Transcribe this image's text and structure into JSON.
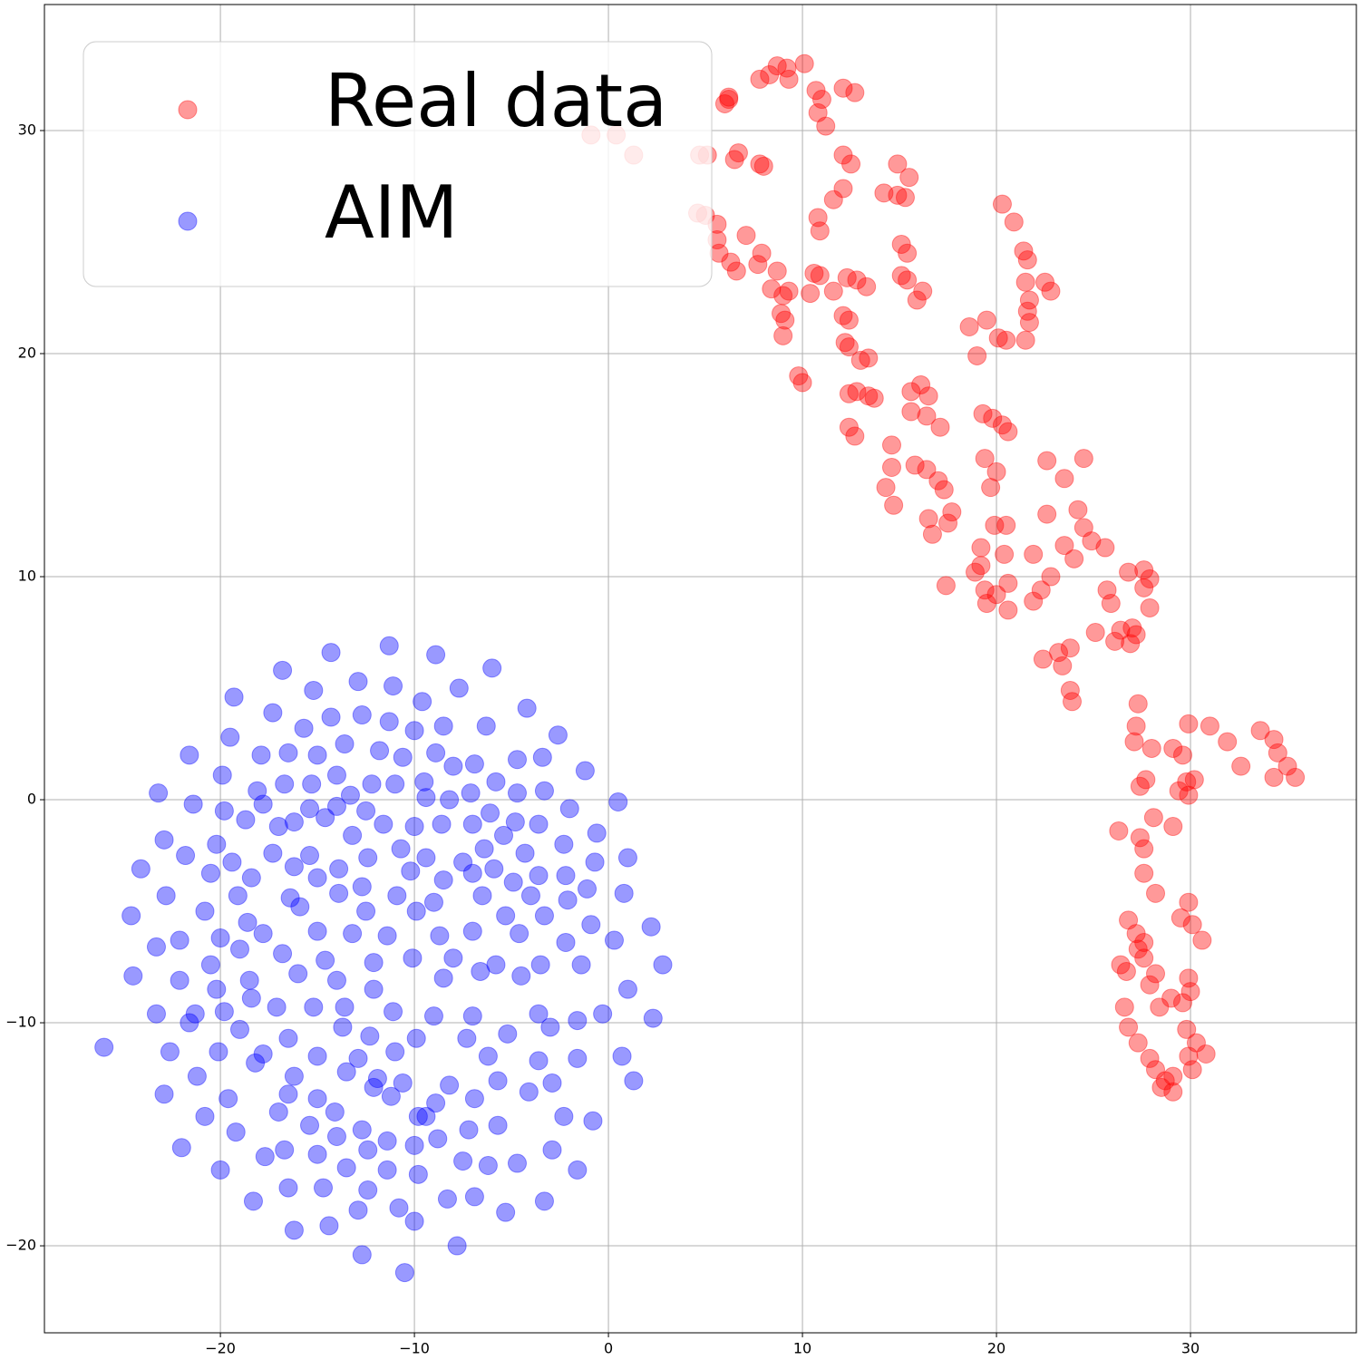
{
  "chart_data": {
    "type": "scatter",
    "xlim": [
      -29.07,
      38.55
    ],
    "ylim": [
      -23.9,
      35.65
    ],
    "xticks": [
      {
        "value": -20,
        "label": "−20"
      },
      {
        "value": -10,
        "label": "−10"
      },
      0,
      10,
      20,
      30
    ],
    "yticks": [
      {
        "value": -20,
        "label": "−20"
      },
      {
        "value": -10,
        "label": "−10"
      },
      0,
      10,
      20,
      30
    ],
    "grid": true,
    "legend": "upper left",
    "alpha": 0.4,
    "series": [
      {
        "name": "Real data",
        "color": "#ff0000",
        "x": [
          8.7,
          10.1,
          9.2,
          8.3,
          7.8,
          9.3,
          10.7,
          11.0,
          10.8,
          11.2,
          12.1,
          12.7,
          6.2,
          6.0,
          6.2,
          -0.9,
          0.4,
          1.3,
          4.7,
          5.1,
          6.5,
          6.7,
          7.8,
          8.0,
          12.1,
          12.5,
          14.9,
          15.5,
          11.6,
          12.1,
          14.2,
          14.9,
          15.3,
          4.6,
          5.0,
          5.6,
          5.6,
          5.7,
          6.3,
          6.6,
          7.1,
          7.9,
          7.7,
          8.7,
          8.4,
          9.3,
          9.0,
          8.9,
          9.0,
          9.1,
          10.8,
          10.9,
          10.6,
          10.9,
          11.6,
          10.4,
          12.3,
          12.8,
          13.3,
          15.1,
          15.4,
          15.1,
          15.4,
          16.2,
          15.9,
          20.3,
          20.9,
          21.4,
          21.6,
          21.5,
          21.7,
          21.6,
          21.7,
          21.5,
          22.5,
          22.8,
          20.5,
          20.1,
          19.5,
          18.6,
          19.0,
          12.1,
          12.4,
          12.2,
          12.4,
          13.0,
          13.4,
          9.8,
          10.0,
          12.4,
          12.8,
          13.4,
          13.7,
          16.1,
          15.6,
          16.5,
          15.6,
          16.4,
          17.1,
          12.4,
          12.7,
          14.6,
          14.6,
          14.3,
          14.7,
          15.8,
          16.4,
          17.0,
          17.3,
          16.5,
          16.7,
          17.5,
          17.7,
          17.4,
          19.3,
          19.8,
          20.3,
          20.6,
          19.4,
          20.0,
          19.7,
          19.9,
          20.5,
          19.2,
          20.4,
          19.2,
          18.9,
          19.4,
          19.5,
          20.0,
          20.6,
          20.6,
          21.9,
          22.6,
          23.5,
          24.5,
          24.2,
          22.6,
          23.5,
          24.0,
          24.5,
          24.9,
          25.6,
          22.8,
          21.9,
          22.3,
          25.7,
          25.9,
          26.8,
          27.6,
          27.9,
          27.6,
          27.9,
          26.1,
          25.1,
          26.4,
          27.0,
          27.2,
          26.9,
          22.4,
          23.2,
          23.8,
          23.4,
          23.8,
          23.9,
          27.3,
          27.2,
          27.1,
          28.0,
          27.4,
          27.7,
          29.1,
          29.6,
          29.9,
          31.0,
          31.9,
          32.6,
          33.6,
          34.3,
          34.5,
          35.0,
          35.4,
          34.3,
          29.8,
          29.4,
          29.9,
          30.2,
          28.1,
          29.1,
          26.3,
          27.4,
          27.6,
          27.6,
          28.2,
          29.9,
          29.5,
          30.1,
          30.6,
          26.8,
          27.2,
          27.6,
          27.3,
          27.6,
          26.4,
          26.7,
          28.2,
          27.9,
          29.9,
          30.0,
          29.0,
          28.4,
          29.6,
          26.6,
          26.8,
          27.3,
          29.8,
          30.3,
          30.8,
          29.9,
          27.9,
          28.2,
          28.7,
          29.1,
          29.1,
          28.5,
          30.1
        ],
        "values": [
          32.9,
          33.0,
          32.8,
          32.5,
          32.3,
          32.3,
          31.8,
          31.4,
          30.8,
          30.2,
          31.9,
          31.7,
          31.5,
          31.2,
          31.4,
          29.8,
          29.8,
          28.9,
          28.9,
          28.9,
          28.7,
          29.0,
          28.5,
          28.4,
          28.9,
          28.5,
          28.5,
          27.9,
          26.9,
          27.4,
          27.2,
          27.1,
          27.0,
          26.3,
          26.2,
          25.8,
          25.1,
          24.5,
          24.1,
          23.7,
          25.3,
          24.5,
          24.0,
          23.7,
          22.9,
          22.8,
          22.6,
          21.8,
          20.8,
          21.5,
          26.1,
          25.5,
          23.6,
          23.5,
          22.8,
          22.7,
          23.4,
          23.3,
          23.0,
          24.9,
          24.5,
          23.5,
          23.3,
          22.8,
          22.4,
          26.7,
          25.9,
          24.6,
          24.2,
          23.2,
          22.4,
          21.9,
          21.4,
          20.6,
          23.2,
          22.8,
          20.6,
          20.7,
          21.5,
          21.2,
          19.9,
          21.7,
          21.5,
          20.5,
          20.3,
          19.7,
          19.8,
          19.0,
          18.7,
          18.2,
          18.3,
          18.1,
          18.0,
          18.6,
          18.3,
          18.1,
          17.4,
          17.2,
          16.7,
          16.7,
          16.3,
          15.9,
          14.9,
          14.0,
          13.2,
          15.0,
          14.8,
          14.3,
          13.9,
          12.6,
          11.9,
          12.4,
          12.9,
          9.6,
          17.3,
          17.1,
          16.8,
          16.5,
          15.3,
          14.7,
          14.0,
          12.3,
          12.3,
          11.3,
          11.0,
          10.5,
          10.2,
          9.4,
          8.8,
          9.2,
          9.7,
          8.5,
          11.0,
          15.2,
          14.4,
          15.3,
          13.0,
          12.8,
          11.4,
          10.8,
          12.2,
          11.6,
          11.3,
          10.0,
          8.9,
          9.4,
          9.4,
          8.8,
          10.2,
          10.3,
          9.9,
          9.5,
          8.6,
          7.1,
          7.5,
          7.6,
          7.7,
          7.4,
          7.0,
          6.3,
          6.6,
          6.8,
          6.0,
          4.9,
          4.4,
          4.3,
          3.3,
          2.6,
          2.3,
          0.6,
          0.9,
          2.3,
          2.0,
          3.4,
          3.3,
          2.6,
          1.5,
          3.1,
          2.7,
          2.1,
          1.5,
          1.0,
          1.0,
          0.8,
          0.4,
          0.2,
          0.9,
          -0.8,
          -1.2,
          -1.4,
          -1.7,
          -2.2,
          -3.3,
          -4.2,
          -4.6,
          -5.3,
          -5.6,
          -6.3,
          -5.4,
          -6.0,
          -6.4,
          -6.7,
          -7.1,
          -7.4,
          -7.7,
          -7.8,
          -8.3,
          -8.0,
          -8.6,
          -8.9,
          -9.3,
          -9.1,
          -9.3,
          -10.2,
          -10.9,
          -10.3,
          -10.9,
          -11.4,
          -11.5,
          -11.6,
          -12.1,
          -12.6,
          -12.4,
          -13.1,
          -12.9,
          -12.1
        ]
      },
      {
        "name": "AIM",
        "color": "#0000ff",
        "x": [
          -11.3,
          -14.3,
          -8.9,
          -16.8,
          -6.0,
          -12.9,
          -11.1,
          -15.2,
          -7.7,
          -19.3,
          -9.6,
          -4.2,
          -17.3,
          -12.7,
          -14.3,
          -6.3,
          -11.3,
          -15.7,
          -8.5,
          -19.5,
          -10.0,
          -13.6,
          -2.6,
          -21.6,
          -17.9,
          -15.0,
          -16.5,
          -11.8,
          -8.9,
          -6.9,
          -4.7,
          -3.4,
          -10.6,
          -19.9,
          -8.0,
          -14.0,
          -12.2,
          -9.5,
          -15.3,
          -16.7,
          -18.1,
          -1.2,
          -23.2,
          -7.1,
          -5.8,
          -3.3,
          -13.3,
          -11.0,
          -9.4,
          -4.7,
          -21.4,
          -17.8,
          -19.8,
          -15.4,
          -14.0,
          -12.5,
          -8.2,
          -6.1,
          -2.0,
          0.5,
          -18.7,
          -16.2,
          -14.6,
          -11.6,
          -10.0,
          -8.6,
          -7.0,
          -4.8,
          -3.6,
          -17.0,
          -13.2,
          -5.4,
          -22.9,
          -20.2,
          -2.3,
          -0.6,
          -17.3,
          -15.4,
          -12.4,
          -10.7,
          -9.4,
          -6.4,
          -4.3,
          1.0,
          -24.1,
          -21.8,
          -19.4,
          -18.4,
          -16.2,
          -13.9,
          -10.2,
          -7.5,
          -5.9,
          -3.6,
          -0.7,
          -20.5,
          -15.0,
          -12.7,
          -8.5,
          -7.0,
          -4.9,
          -2.2,
          -1.1,
          -22.8,
          -19.1,
          -16.4,
          -13.9,
          -10.9,
          -9.0,
          -6.5,
          -4.0,
          -2.1,
          0.8,
          -24.6,
          -20.8,
          -18.6,
          -15.9,
          -12.5,
          -9.9,
          -5.3,
          -3.3,
          -0.9,
          2.2,
          -23.3,
          -22.1,
          -20.0,
          -17.8,
          -15.0,
          -13.2,
          -11.4,
          -8.7,
          -7.0,
          -4.6,
          -2.2,
          0.3,
          -20.5,
          -19.0,
          -16.8,
          -14.6,
          -12.1,
          -10.1,
          -8.0,
          -5.8,
          -3.5,
          -1.4,
          2.8,
          -24.5,
          -22.1,
          -20.2,
          -18.5,
          -16.0,
          -14.0,
          -12.1,
          -8.5,
          -6.6,
          -4.5,
          1.0,
          -21.3,
          -19.8,
          -18.4,
          -17.1,
          -15.2,
          -13.6,
          -11.1,
          -9.0,
          -7.0,
          -3.6,
          -1.6,
          -0.3,
          -23.3,
          -21.6,
          -19.0,
          -16.5,
          -13.7,
          -12.3,
          -9.9,
          -7.3,
          -5.2,
          -3.0,
          2.3,
          -26.0,
          -22.6,
          -20.1,
          -17.8,
          -15.0,
          -12.9,
          -11.0,
          -6.2,
          -3.6,
          -1.6,
          0.7,
          -21.2,
          -18.2,
          -16.2,
          -13.5,
          -11.9,
          -10.6,
          -8.2,
          -5.7,
          -2.9,
          1.3,
          -22.9,
          -19.6,
          -16.5,
          -15.0,
          -12.1,
          -8.9,
          -6.9,
          -4.1,
          -20.8,
          -17.0,
          -14.1,
          -11.2,
          -9.8,
          -5.7,
          -2.3,
          -0.8,
          -22.0,
          -19.2,
          -15.4,
          -12.7,
          -9.4,
          -7.2,
          -2.9,
          -16.7,
          -14.0,
          -11.4,
          -10.0,
          -8.8,
          -17.7,
          -15.0,
          -12.4,
          -7.5,
          -4.7,
          -20.0,
          -13.5,
          -11.4,
          -9.8,
          -6.2,
          -1.6,
          -16.5,
          -14.7,
          -12.4,
          -8.3,
          -6.9,
          -3.3,
          -18.3,
          -12.9,
          -10.8,
          -5.3,
          -16.2,
          -14.4,
          -10.0,
          -7.8,
          -12.7,
          -10.5
        ],
        "values": [
          6.9,
          6.6,
          6.5,
          5.8,
          5.9,
          5.3,
          5.1,
          4.9,
          5.0,
          4.6,
          4.4,
          4.1,
          3.9,
          3.8,
          3.7,
          3.3,
          3.5,
          3.2,
          3.3,
          2.8,
          3.1,
          2.5,
          2.9,
          2.0,
          2.0,
          2.0,
          2.1,
          2.2,
          2.1,
          1.6,
          1.8,
          1.9,
          1.9,
          1.1,
          1.5,
          1.1,
          0.7,
          0.8,
          0.7,
          0.7,
          0.4,
          1.3,
          0.3,
          0.3,
          0.8,
          0.4,
          0.2,
          0.7,
          0.1,
          0.3,
          -0.2,
          -0.2,
          -0.5,
          -0.4,
          -0.3,
          -0.5,
          0.0,
          -0.6,
          -0.4,
          -0.1,
          -0.9,
          -1.0,
          -0.8,
          -1.1,
          -1.2,
          -1.1,
          -1.1,
          -1.0,
          -1.1,
          -1.2,
          -1.6,
          -1.6,
          -1.8,
          -2.0,
          -2.0,
          -1.5,
          -2.4,
          -2.5,
          -2.6,
          -2.2,
          -2.6,
          -2.2,
          -2.4,
          -2.6,
          -3.1,
          -2.5,
          -2.8,
          -3.5,
          -3.0,
          -3.1,
          -3.2,
          -2.8,
          -3.1,
          -3.4,
          -2.8,
          -3.3,
          -3.5,
          -3.9,
          -3.6,
          -3.3,
          -3.7,
          -3.4,
          -4.0,
          -4.3,
          -4.3,
          -4.4,
          -4.2,
          -4.3,
          -4.6,
          -4.3,
          -4.3,
          -4.5,
          -4.2,
          -5.2,
          -5.0,
          -5.5,
          -4.8,
          -5.0,
          -5.0,
          -5.2,
          -5.2,
          -5.6,
          -5.7,
          -6.6,
          -6.3,
          -6.2,
          -6.0,
          -5.9,
          -6.0,
          -6.1,
          -6.1,
          -5.9,
          -6.0,
          -6.4,
          -6.3,
          -7.4,
          -6.7,
          -6.9,
          -7.2,
          -7.3,
          -7.1,
          -7.1,
          -7.4,
          -7.4,
          -7.4,
          -7.4,
          -7.9,
          -8.1,
          -8.5,
          -8.1,
          -7.8,
          -8.1,
          -8.5,
          -8.0,
          -7.7,
          -7.9,
          -8.5,
          -9.6,
          -9.5,
          -8.9,
          -9.3,
          -9.3,
          -9.3,
          -9.5,
          -9.7,
          -9.7,
          -9.6,
          -9.9,
          -9.6,
          -9.6,
          -10.0,
          -10.3,
          -10.7,
          -10.2,
          -10.6,
          -10.7,
          -10.7,
          -10.5,
          -10.2,
          -9.8,
          -11.1,
          -11.3,
          -11.3,
          -11.4,
          -11.5,
          -11.6,
          -11.3,
          -11.5,
          -11.7,
          -11.6,
          -11.5,
          -12.4,
          -11.8,
          -12.4,
          -12.2,
          -12.5,
          -12.7,
          -12.8,
          -12.6,
          -12.7,
          -12.6,
          -13.2,
          -13.4,
          -13.2,
          -13.4,
          -12.9,
          -13.6,
          -13.4,
          -13.1,
          -14.2,
          -14.0,
          -14.0,
          -13.3,
          -14.2,
          -14.6,
          -14.2,
          -14.4,
          -15.6,
          -14.9,
          -14.6,
          -14.8,
          -14.2,
          -14.8,
          -15.7,
          -15.7,
          -15.1,
          -15.3,
          -15.5,
          -15.2,
          -16.0,
          -15.9,
          -15.7,
          -16.2,
          -16.3,
          -16.6,
          -16.5,
          -16.6,
          -16.8,
          -16.4,
          -16.6,
          -17.4,
          -17.4,
          -17.5,
          -17.9,
          -17.8,
          -18.0,
          -18.0,
          -18.4,
          -18.3,
          -18.5,
          -19.3,
          -19.1,
          -18.9,
          -20.0,
          -20.4,
          -21.2
        ]
      }
    ]
  }
}
